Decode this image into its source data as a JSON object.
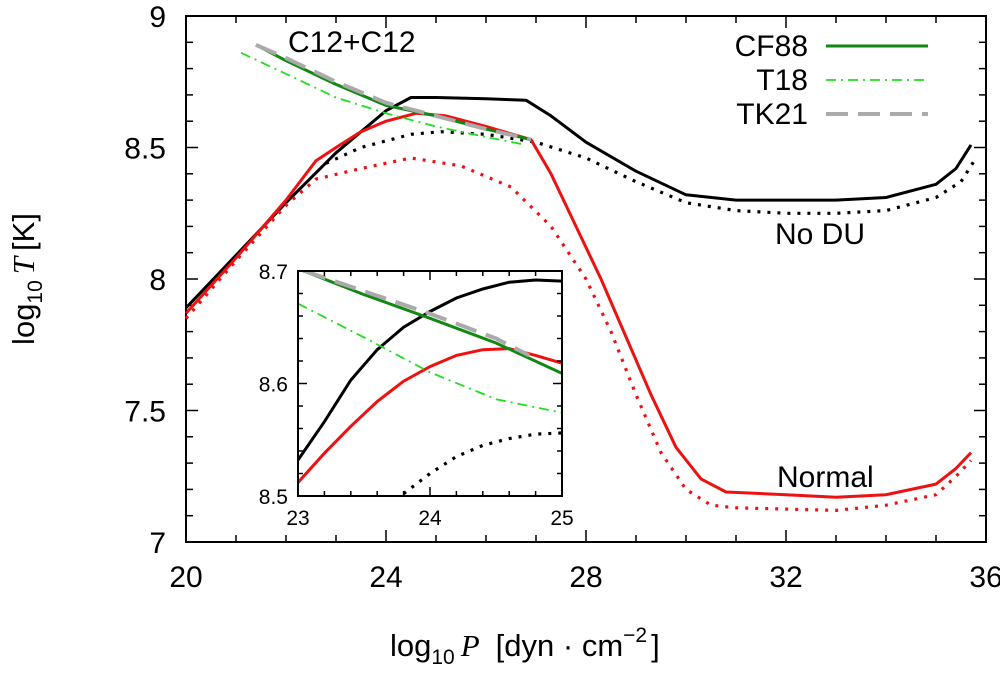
{
  "chart_data": {
    "type": "line",
    "xlabel": {
      "prefix": "log",
      "sub": "10",
      "var": "P",
      "unit": "[dyn · cm",
      "sup": "−2",
      "close": "]"
    },
    "ylabel": {
      "prefix": "log",
      "sub": "10",
      "var": "T",
      "unit": "[K]"
    },
    "xlim": [
      20,
      36
    ],
    "ylim": [
      7,
      9
    ],
    "xticks": [
      20,
      24,
      28,
      32,
      36
    ],
    "yticks": [
      7,
      7.5,
      8,
      8.5,
      9
    ],
    "xtick_labels": [
      "20",
      "24",
      "28",
      "32",
      "36"
    ],
    "ytick_labels": [
      "7",
      "7.5",
      "8",
      "8.5",
      "9"
    ],
    "legend_position": "top-right",
    "annotations": {
      "c12": "C12+C12",
      "nodu": "No DU",
      "normal": "Normal"
    },
    "colors": {
      "black": "#000000",
      "red": "#ee1111",
      "cf88": "#118811",
      "t18": "#22dd22",
      "tk21": "#aaaaaa"
    },
    "series": [
      {
        "key": "nodu_solid",
        "name": "No DU (solid)",
        "color": "#000000",
        "style": "solid",
        "points": [
          [
            20,
            7.89
          ],
          [
            21,
            8.09
          ],
          [
            22,
            8.29
          ],
          [
            23,
            8.48
          ],
          [
            24,
            8.64
          ],
          [
            24.5,
            8.69
          ],
          [
            25,
            8.69
          ],
          [
            26,
            8.685
          ],
          [
            26.8,
            8.68
          ],
          [
            27.3,
            8.62
          ],
          [
            28,
            8.52
          ],
          [
            29,
            8.41
          ],
          [
            30,
            8.32
          ],
          [
            31,
            8.3
          ],
          [
            32,
            8.3
          ],
          [
            33,
            8.3
          ],
          [
            34,
            8.31
          ],
          [
            35,
            8.36
          ],
          [
            35.4,
            8.42
          ],
          [
            35.7,
            8.51
          ]
        ]
      },
      {
        "key": "nodu_dotted",
        "name": "No DU (dotted)",
        "color": "#000000",
        "style": "dotted",
        "points": [
          [
            22.8,
            8.44
          ],
          [
            23.5,
            8.5
          ],
          [
            24.5,
            8.55
          ],
          [
            25.1,
            8.56
          ],
          [
            26,
            8.55
          ],
          [
            27,
            8.52
          ],
          [
            28,
            8.46
          ],
          [
            29,
            8.37
          ],
          [
            30,
            8.29
          ],
          [
            31,
            8.26
          ],
          [
            32,
            8.25
          ],
          [
            33,
            8.25
          ],
          [
            34,
            8.26
          ],
          [
            35,
            8.31
          ],
          [
            35.5,
            8.37
          ],
          [
            35.8,
            8.46
          ]
        ]
      },
      {
        "key": "normal_solid",
        "name": "Normal (solid)",
        "color": "#ee1111",
        "style": "solid",
        "points": [
          [
            20,
            7.87
          ],
          [
            21,
            8.08
          ],
          [
            22,
            8.3
          ],
          [
            22.6,
            8.45
          ],
          [
            23,
            8.5
          ],
          [
            23.5,
            8.56
          ],
          [
            24,
            8.6
          ],
          [
            24.6,
            8.63
          ],
          [
            25.2,
            8.62
          ],
          [
            26,
            8.58
          ],
          [
            26.9,
            8.53
          ],
          [
            27.3,
            8.4
          ],
          [
            27.8,
            8.2
          ],
          [
            28.3,
            8.0
          ],
          [
            28.8,
            7.78
          ],
          [
            29.3,
            7.56
          ],
          [
            29.8,
            7.36
          ],
          [
            30.3,
            7.24
          ],
          [
            30.8,
            7.19
          ],
          [
            32,
            7.18
          ],
          [
            33,
            7.17
          ],
          [
            34,
            7.18
          ],
          [
            35,
            7.22
          ],
          [
            35.4,
            7.28
          ],
          [
            35.7,
            7.34
          ]
        ]
      },
      {
        "key": "normal_dotted",
        "name": "Normal (dotted)",
        "color": "#ee1111",
        "style": "dotted",
        "points": [
          [
            20,
            7.85
          ],
          [
            21,
            8.07
          ],
          [
            22,
            8.28
          ],
          [
            22.6,
            8.38
          ],
          [
            23.5,
            8.42
          ],
          [
            24.5,
            8.46
          ],
          [
            25.5,
            8.43
          ],
          [
            26.5,
            8.35
          ],
          [
            27.3,
            8.2
          ],
          [
            28,
            8.0
          ],
          [
            28.5,
            7.8
          ],
          [
            29,
            7.56
          ],
          [
            29.5,
            7.34
          ],
          [
            30,
            7.2
          ],
          [
            30.5,
            7.14
          ],
          [
            31,
            7.13
          ],
          [
            33,
            7.12
          ],
          [
            34,
            7.14
          ],
          [
            35,
            7.18
          ],
          [
            35.4,
            7.25
          ],
          [
            35.7,
            7.31
          ]
        ]
      },
      {
        "key": "cf88",
        "name": "CF88",
        "color": "#118811",
        "style": "solid",
        "legend": true,
        "points": [
          [
            21.4,
            8.89
          ],
          [
            22,
            8.83
          ],
          [
            23,
            8.74
          ],
          [
            24,
            8.66
          ],
          [
            25,
            8.62
          ],
          [
            26,
            8.57
          ],
          [
            26.9,
            8.53
          ]
        ]
      },
      {
        "key": "t18",
        "name": "T18",
        "color": "#22dd22",
        "style": "dashdot",
        "legend": true,
        "points": [
          [
            21.1,
            8.86
          ],
          [
            22,
            8.78
          ],
          [
            23,
            8.69
          ],
          [
            24,
            8.63
          ],
          [
            25,
            8.58
          ],
          [
            26,
            8.54
          ],
          [
            26.8,
            8.51
          ]
        ]
      },
      {
        "key": "tk21",
        "name": "TK21",
        "color": "#aaaaaa",
        "style": "dashed",
        "legend": true,
        "points": [
          [
            21.4,
            8.89
          ],
          [
            22,
            8.84
          ],
          [
            23,
            8.75
          ],
          [
            24,
            8.67
          ],
          [
            25,
            8.62
          ],
          [
            26,
            8.57
          ],
          [
            26.9,
            8.53
          ]
        ]
      }
    ],
    "inset": {
      "xlim": [
        23,
        25
      ],
      "ylim": [
        8.5,
        8.7
      ],
      "xticks": [
        23,
        24,
        25
      ],
      "yticks": [
        8.5,
        8.6,
        8.7
      ],
      "xtick_labels": [
        "23",
        "24",
        "25"
      ],
      "ytick_labels": [
        "8.5",
        "8.6",
        "8.7"
      ],
      "series": [
        {
          "key": "in_black",
          "color": "#000000",
          "style": "solid",
          "points": [
            [
              23,
              8.532
            ],
            [
              23.2,
              8.566
            ],
            [
              23.4,
              8.603
            ],
            [
              23.6,
              8.63
            ],
            [
              23.8,
              8.65
            ],
            [
              24,
              8.664
            ],
            [
              24.2,
              8.676
            ],
            [
              24.4,
              8.684
            ],
            [
              24.6,
              8.69
            ],
            [
              24.8,
              8.692
            ],
            [
              25,
              8.691
            ]
          ]
        },
        {
          "key": "in_red",
          "color": "#ee1111",
          "style": "solid",
          "points": [
            [
              23,
              8.512
            ],
            [
              23.2,
              8.538
            ],
            [
              23.4,
              8.562
            ],
            [
              23.6,
              8.584
            ],
            [
              23.8,
              8.602
            ],
            [
              24,
              8.615
            ],
            [
              24.2,
              8.625
            ],
            [
              24.4,
              8.63
            ],
            [
              24.6,
              8.631
            ],
            [
              24.8,
              8.625
            ],
            [
              25,
              8.618
            ]
          ]
        },
        {
          "key": "in_cf88",
          "color": "#118811",
          "style": "solid",
          "points": [
            [
              23,
              8.702
            ],
            [
              23.5,
              8.679
            ],
            [
              24,
              8.658
            ],
            [
              24.5,
              8.636
            ],
            [
              25,
              8.609
            ]
          ]
        },
        {
          "key": "in_tk21",
          "color": "#aaaaaa",
          "style": "dashed",
          "points": [
            [
              23.05,
              8.7
            ],
            [
              23.5,
              8.682
            ],
            [
              24,
              8.662
            ],
            [
              24.5,
              8.64
            ],
            [
              24.75,
              8.625
            ]
          ]
        },
        {
          "key": "in_t18",
          "color": "#22dd22",
          "style": "dashdot",
          "points": [
            [
              23,
              8.671
            ],
            [
              23.5,
              8.641
            ],
            [
              24,
              8.61
            ],
            [
              24.5,
              8.586
            ],
            [
              25,
              8.574
            ]
          ]
        },
        {
          "key": "in_dotted",
          "color": "#000000",
          "style": "dotted",
          "points": [
            [
              23.8,
              8.502
            ],
            [
              24,
              8.52
            ],
            [
              24.2,
              8.535
            ],
            [
              24.4,
              8.545
            ],
            [
              24.6,
              8.551
            ],
            [
              24.8,
              8.555
            ],
            [
              25,
              8.556
            ]
          ]
        }
      ]
    }
  }
}
